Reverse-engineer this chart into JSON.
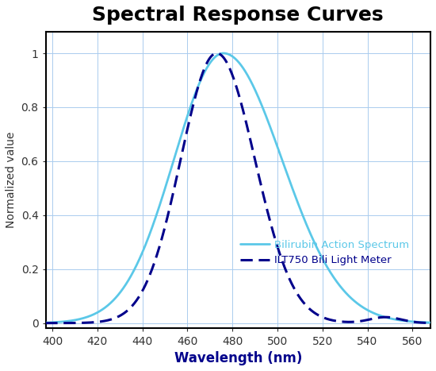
{
  "title": "Spectral Response Curves",
  "title_fontsize": 18,
  "title_fontweight": "bold",
  "xlabel": "Wavelength (nm)",
  "ylabel": "Normalized value",
  "xlabel_fontsize": 12,
  "ylabel_fontsize": 10,
  "xlabel_color": "#00008b",
  "xlabel_fontweight": "bold",
  "xlim": [
    397,
    568
  ],
  "ylim": [
    -0.02,
    1.08
  ],
  "xticks": [
    400,
    420,
    440,
    460,
    480,
    500,
    520,
    540,
    560
  ],
  "yticks": [
    0,
    0.2,
    0.4,
    0.6,
    0.8,
    1.0
  ],
  "grid_color": "#aaccee",
  "grid_linewidth": 0.7,
  "background_color": "#ffffff",
  "plot_bg_color": "#ffffff",
  "border_color": "#000000",
  "curve1_label": "Bilirubin Action Spectrum",
  "curve1_color": "#5bc8e8",
  "curve1_linewidth": 2.0,
  "curve1_peak_nm": 476,
  "curve1_sigma_l": 22,
  "curve1_sigma_r": 26,
  "curve2_label": "ILT750 Bili Light Meter",
  "curve2_color": "#00008b",
  "curve2_linewidth": 2.2,
  "curve2_peak_nm": 473,
  "curve2_sigma_l": 16,
  "curve2_sigma_r": 17,
  "legend_fontsize": 9.5,
  "tick_fontsize": 10,
  "tick_color": "#333333"
}
